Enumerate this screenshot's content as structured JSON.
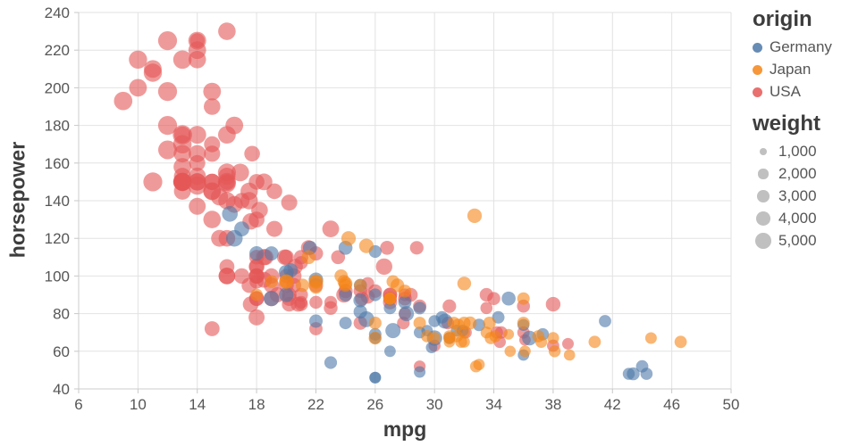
{
  "chart_data": {
    "type": "scatter",
    "title": "",
    "xlabel": "mpg",
    "ylabel": "horsepower",
    "xlim": [
      6,
      50
    ],
    "ylim": [
      40,
      240
    ],
    "x_ticks": [
      6,
      10,
      14,
      18,
      22,
      26,
      30,
      34,
      38,
      42,
      46,
      50
    ],
    "y_ticks": [
      40,
      60,
      80,
      100,
      120,
      140,
      160,
      180,
      200,
      220,
      240
    ],
    "grid": true,
    "point_opacity": 0.6,
    "size_field": "weight",
    "origin_levels": [
      "Germany",
      "Japan",
      "USA"
    ],
    "colors": {
      "Germany": "#4c78a8",
      "Japan": "#f58518",
      "USA": "#e45756"
    },
    "legend": {
      "position": "right",
      "origin_title": "origin",
      "origin_items": [
        {
          "label": "Germany",
          "color": "#4c78a8"
        },
        {
          "label": "Japan",
          "color": "#f58518"
        },
        {
          "label": "USA",
          "color": "#e45756"
        }
      ],
      "size_title": "weight",
      "size_items": [
        {
          "label": "1,000",
          "value": 1000
        },
        {
          "label": "2,000",
          "value": 2000
        },
        {
          "label": "3,000",
          "value": 3000
        },
        {
          "label": "4,000",
          "value": 4000
        },
        {
          "label": "5,000",
          "value": 5000
        }
      ]
    },
    "point_columns": [
      "mpg",
      "horsepower",
      "weight",
      "origin_index"
    ],
    "points": [
      [
        18,
        130,
        3504,
        2
      ],
      [
        15,
        165,
        3693,
        2
      ],
      [
        18,
        150,
        3436,
        2
      ],
      [
        16,
        150,
        3433,
        2
      ],
      [
        17,
        140,
        3449,
        2
      ],
      [
        15,
        198,
        4341,
        2
      ],
      [
        14,
        220,
        4354,
        2
      ],
      [
        14,
        215,
        4312,
        2
      ],
      [
        14,
        225,
        4425,
        2
      ],
      [
        15,
        190,
        3850,
        2
      ],
      [
        15,
        170,
        3563,
        2
      ],
      [
        14,
        160,
        3609,
        2
      ],
      [
        15,
        150,
        3761,
        2
      ],
      [
        14,
        225,
        3086,
        2
      ],
      [
        22,
        95,
        2833,
        2
      ],
      [
        18,
        97,
        2774,
        2
      ],
      [
        21,
        85,
        2587,
        2
      ],
      [
        21,
        90,
        2648,
        2
      ],
      [
        10,
        215,
        4615,
        2
      ],
      [
        10,
        200,
        4376,
        2
      ],
      [
        11,
        210,
        4382,
        2
      ],
      [
        9,
        193,
        4732,
        2
      ],
      [
        28,
        90,
        2264,
        2
      ],
      [
        19,
        100,
        3282,
        2
      ],
      [
        16,
        105,
        3139,
        2
      ],
      [
        17,
        100,
        3329,
        2
      ],
      [
        19,
        88,
        3302,
        2
      ],
      [
        18,
        100,
        3288,
        2
      ],
      [
        14,
        165,
        4209,
        2
      ],
      [
        14,
        175,
        4464,
        2
      ],
      [
        14,
        153,
        4154,
        2
      ],
      [
        14,
        150,
        4096,
        2
      ],
      [
        12,
        180,
        4955,
        2
      ],
      [
        13,
        170,
        4746,
        2
      ],
      [
        13,
        175,
        5140,
        2
      ],
      [
        18,
        110,
        2962,
        2
      ],
      [
        22,
        72,
        2408,
        2
      ],
      [
        18,
        88,
        3139,
        2
      ],
      [
        23,
        86,
        2220,
        2
      ],
      [
        21,
        86,
        2226,
        2
      ],
      [
        11,
        150,
        4997,
        2
      ],
      [
        12,
        167,
        4906,
        2
      ],
      [
        13,
        158,
        4363,
        2
      ],
      [
        13,
        150,
        4699,
        2
      ],
      [
        12,
        198,
        4952,
        2
      ],
      [
        13,
        145,
        3988,
        2
      ],
      [
        13,
        153,
        4034,
        2
      ],
      [
        14,
        148,
        4657,
        2
      ],
      [
        14,
        137,
        4042,
        2
      ],
      [
        13,
        150,
        4457,
        2
      ],
      [
        13,
        165,
        4274,
        2
      ],
      [
        15,
        145,
        4440,
        2
      ],
      [
        16,
        230,
        4278,
        2
      ],
      [
        15,
        145,
        4082,
        2
      ],
      [
        16,
        175,
        4385,
        2
      ],
      [
        16,
        153,
        4129,
        2
      ],
      [
        16,
        155,
        4502,
        2
      ],
      [
        12,
        225,
        4951,
        2
      ],
      [
        13,
        215,
        4735,
        2
      ],
      [
        11,
        208,
        4633,
        2
      ],
      [
        13,
        150,
        4100,
        2
      ],
      [
        13,
        175,
        3821,
        2
      ],
      [
        18,
        105,
        3121,
        2
      ],
      [
        20,
        95,
        3102,
        2
      ],
      [
        18,
        100,
        2945,
        2
      ],
      [
        18,
        88,
        3021,
        2
      ],
      [
        18,
        100,
        3336,
        2
      ],
      [
        15,
        150,
        3777,
        2
      ],
      [
        16,
        100,
        3781,
        2
      ],
      [
        16,
        140,
        4141,
        2
      ],
      [
        19,
        95,
        3264,
        2
      ],
      [
        18,
        105,
        3459,
        2
      ],
      [
        18,
        78,
        3574,
        2
      ],
      [
        18.5,
        110,
        3645,
        2
      ],
      [
        17.5,
        95,
        3193,
        2
      ],
      [
        16,
        100,
        3907,
        2
      ],
      [
        15,
        72,
        3158,
        2
      ],
      [
        20,
        110,
        3221,
        2
      ],
      [
        25.5,
        89,
        2755,
        2
      ],
      [
        21,
        110,
        2945,
        2
      ],
      [
        13,
        150,
        3940,
        2
      ],
      [
        29,
        52,
        1958,
        2
      ],
      [
        23,
        83,
        2639,
        2
      ],
      [
        20,
        100,
        2874,
        2
      ],
      [
        25,
        75,
        2542,
        2
      ],
      [
        28,
        80,
        2164,
        2
      ],
      [
        33.5,
        83,
        2075,
        2
      ],
      [
        25.5,
        96,
        2300,
        2
      ],
      [
        17.5,
        145,
        4140,
        2
      ],
      [
        17.6,
        129,
        3725,
        2
      ],
      [
        16.5,
        138,
        3955,
        2
      ],
      [
        18.2,
        135,
        3830,
        2
      ],
      [
        16.9,
        155,
        4360,
        2
      ],
      [
        15.5,
        142,
        4054,
        2
      ],
      [
        19.2,
        125,
        3605,
        2
      ],
      [
        18.5,
        150,
        3940,
        2
      ],
      [
        16.5,
        180,
        4380,
        2
      ],
      [
        23,
        125,
        3900,
        2
      ],
      [
        19.9,
        110,
        3365,
        2
      ],
      [
        21.5,
        115,
        3245,
        2
      ],
      [
        20.6,
        105,
        3380,
        2
      ],
      [
        20.8,
        85,
        3070,
        2
      ],
      [
        20.2,
        85,
        2965,
        2
      ],
      [
        25.1,
        88,
        2720,
        2
      ],
      [
        20.5,
        100,
        3430,
        2
      ],
      [
        19.4,
        90,
        3210,
        2
      ],
      [
        20.5,
        95,
        3155,
        2
      ],
      [
        18.6,
        110,
        3620,
        2
      ],
      [
        18.5,
        98,
        3525,
        2
      ],
      [
        16,
        120,
        3820,
        2
      ],
      [
        19.2,
        145,
        3425,
        2
      ],
      [
        15.5,
        120,
        3962,
        2
      ],
      [
        16,
        149,
        4335,
        2
      ],
      [
        15,
        130,
        4295,
        2
      ],
      [
        17.7,
        165,
        3445,
        2
      ],
      [
        17.5,
        140,
        4215,
        2
      ],
      [
        16,
        150,
        4498,
        2
      ],
      [
        20.2,
        139,
        3570,
        2
      ],
      [
        14,
        150,
        4237,
        2
      ],
      [
        13,
        150,
        4735,
        2
      ],
      [
        22,
        86,
        2395,
        2
      ],
      [
        21,
        107,
        2472,
        2
      ],
      [
        25,
        92,
        2572,
        2
      ],
      [
        27.9,
        75,
        2230,
        2
      ],
      [
        28.8,
        115,
        2595,
        2
      ],
      [
        23.5,
        110,
        2725,
        2
      ],
      [
        28.4,
        90,
        2670,
        2
      ],
      [
        26.8,
        115,
        2700,
        2
      ],
      [
        33.5,
        90,
        2556,
        2
      ],
      [
        27,
        90,
        2735,
        2
      ],
      [
        32.1,
        70,
        2120,
        2
      ],
      [
        30,
        63,
        2051,
        2
      ],
      [
        30.9,
        75,
        2230,
        2
      ],
      [
        34.2,
        70,
        2200,
        2
      ],
      [
        34.5,
        70,
        2150,
        2
      ],
      [
        38,
        63,
        2125,
        2
      ],
      [
        39,
        64,
        1875,
        2
      ],
      [
        34.4,
        65,
        2045,
        2
      ],
      [
        36,
        70,
        2125,
        2
      ],
      [
        24,
        92,
        2865,
        2
      ],
      [
        20.2,
        90,
        3003,
        2
      ],
      [
        26.6,
        105,
        3725,
        2
      ],
      [
        20.2,
        88,
        3060,
        2
      ],
      [
        17.6,
        85,
        3465,
        2
      ],
      [
        28,
        88,
        2605,
        2
      ],
      [
        27,
        88,
        2640,
        2
      ],
      [
        34,
        88,
        2395,
        2
      ],
      [
        31,
        84,
        2575,
        2
      ],
      [
        29,
        84,
        2525,
        2
      ],
      [
        27,
        90,
        2950,
        2
      ],
      [
        27,
        86,
        2790,
        2
      ],
      [
        26,
        92,
        2585,
        2
      ],
      [
        22,
        112,
        2835,
        2
      ],
      [
        36,
        84,
        2370,
        2
      ],
      [
        38,
        85,
        3015,
        2
      ],
      [
        36.1,
        66,
        1800,
        2
      ],
      [
        23.9,
        90,
        3420,
        2
      ],
      [
        26,
        46,
        1835,
        0
      ],
      [
        25,
        87,
        2672,
        0
      ],
      [
        24,
        90,
        2430,
        0
      ],
      [
        25,
        95,
        2375,
        0
      ],
      [
        26,
        113,
        2234,
        0
      ],
      [
        26,
        46,
        1950,
        0
      ],
      [
        27,
        60,
        1834,
        0
      ],
      [
        30,
        76,
        2065,
        0
      ],
      [
        18,
        112,
        2933,
        0
      ],
      [
        19,
        112,
        2868,
        0
      ],
      [
        20,
        90,
        2979,
        0
      ],
      [
        26,
        69,
        2189,
        0
      ],
      [
        29,
        49,
        1867,
        0
      ],
      [
        24,
        75,
        2158,
        0
      ],
      [
        26,
        90,
        2265,
        0
      ],
      [
        28,
        86,
        2464,
        0
      ],
      [
        25,
        81,
        2542,
        0
      ],
      [
        22,
        98,
        2945,
        0
      ],
      [
        24,
        115,
        2671,
        0
      ],
      [
        29,
        83,
        2219,
        0
      ],
      [
        30.5,
        78,
        2190,
        0
      ],
      [
        29,
        70,
        1937,
        0
      ],
      [
        29.5,
        71,
        1825,
        0
      ],
      [
        19,
        88,
        3270,
        0
      ],
      [
        36,
        58,
        1825,
        0
      ],
      [
        17,
        125,
        3140,
        0
      ],
      [
        21.6,
        115,
        2795,
        0
      ],
      [
        16.5,
        120,
        3820,
        0
      ],
      [
        16.2,
        133,
        3410,
        0
      ],
      [
        30.7,
        76,
        3160,
        0
      ],
      [
        30,
        67,
        3250,
        0
      ],
      [
        25.4,
        77,
        3530,
        0
      ],
      [
        20.3,
        103,
        2830,
        0
      ],
      [
        43.1,
        48,
        1985,
        0
      ],
      [
        43.4,
        48,
        2335,
        0
      ],
      [
        44.3,
        48,
        2085,
        0
      ],
      [
        44,
        52,
        2130,
        0
      ],
      [
        34.3,
        78,
        2188,
        0
      ],
      [
        36.4,
        67,
        3030,
        0
      ],
      [
        31.5,
        71,
        1990,
        0
      ],
      [
        33,
        74,
        2190,
        0
      ],
      [
        36,
        74,
        1980,
        0
      ],
      [
        28.1,
        80,
        3230,
        0
      ],
      [
        27.2,
        71,
        3190,
        0
      ],
      [
        35,
        88,
        2720,
        0
      ],
      [
        37.3,
        69,
        2130,
        0
      ],
      [
        31,
        67,
        2000,
        0
      ],
      [
        20,
        102,
        3150,
        0
      ],
      [
        27,
        83,
        2202,
        0
      ],
      [
        22,
        76,
        2511,
        0
      ],
      [
        23,
        54,
        2254,
        0
      ],
      [
        26,
        67,
        1950,
        0
      ],
      [
        31.9,
        71,
        1925,
        0
      ],
      [
        29.8,
        62,
        1835,
        0
      ],
      [
        41.5,
        76,
        2144,
        0
      ],
      [
        24,
        95,
        2372,
        1
      ],
      [
        27,
        88,
        2130,
        1
      ],
      [
        27,
        88,
        2130,
        1
      ],
      [
        25,
        95,
        2228,
        1
      ],
      [
        31,
        65,
        1773,
        1
      ],
      [
        35,
        69,
        1613,
        1
      ],
      [
        27,
        88,
        2100,
        1
      ],
      [
        28,
        92,
        2288,
        1
      ],
      [
        20,
        97,
        2506,
        1
      ],
      [
        22,
        94,
        2379,
        1
      ],
      [
        19,
        97,
        2330,
        1
      ],
      [
        20,
        97,
        2979,
        1
      ],
      [
        31,
        67,
        1950,
        1
      ],
      [
        29,
        75,
        2171,
        1
      ],
      [
        32,
        65,
        1836,
        1
      ],
      [
        22,
        97,
        2330,
        1
      ],
      [
        24,
        96,
        2665,
        1
      ],
      [
        33,
        53,
        1795,
        1
      ],
      [
        26,
        67,
        2391,
        1
      ],
      [
        18,
        90,
        2124,
        1
      ],
      [
        32,
        75,
        2265,
        1
      ],
      [
        32,
        70,
        1937,
        1
      ],
      [
        31.5,
        68,
        2045,
        1
      ],
      [
        33.5,
        70,
        1945,
        1
      ],
      [
        21.1,
        95,
        2515,
        1
      ],
      [
        30,
        67,
        1985,
        1
      ],
      [
        22,
        97,
        2890,
        1
      ],
      [
        26,
        75,
        2230,
        1
      ],
      [
        32.8,
        52,
        1985,
        1
      ],
      [
        27.2,
        97,
        2300,
        1
      ],
      [
        27.5,
        95,
        2560,
        1
      ],
      [
        23.9,
        97,
        2405,
        1
      ],
      [
        29.5,
        68,
        2135,
        1
      ],
      [
        31.3,
        75,
        2190,
        1
      ],
      [
        31.8,
        65,
        2020,
        1
      ],
      [
        36.1,
        60,
        1800,
        1
      ],
      [
        23.7,
        100,
        2420,
        1
      ],
      [
        37.2,
        65,
        2019,
        1
      ],
      [
        38.1,
        60,
        1968,
        1
      ],
      [
        32.4,
        75,
        2350,
        1
      ],
      [
        40.8,
        65,
        2110,
        1
      ],
      [
        31.6,
        74,
        2190,
        1
      ],
      [
        32.7,
        132,
        2910,
        1
      ],
      [
        34.1,
        68,
        1985,
        1
      ],
      [
        33.7,
        75,
        2210,
        1
      ],
      [
        39.1,
        58,
        1755,
        1
      ],
      [
        35.1,
        60,
        1760,
        1
      ],
      [
        33.8,
        67,
        2145,
        1
      ],
      [
        24.2,
        120,
        2930,
        1
      ],
      [
        25.4,
        116,
        2905,
        1
      ],
      [
        44.6,
        67,
        1850,
        1
      ],
      [
        46.6,
        65,
        2110,
        1
      ],
      [
        36,
        88,
        2160,
        1
      ],
      [
        36,
        75,
        2205,
        1
      ],
      [
        32,
        96,
        2665,
        1
      ],
      [
        38,
        67,
        1995,
        1
      ],
      [
        37,
        68,
        2025,
        1
      ],
      [
        31,
        68,
        1970,
        1
      ],
      [
        21.5,
        110,
        2720,
        1
      ]
    ]
  }
}
